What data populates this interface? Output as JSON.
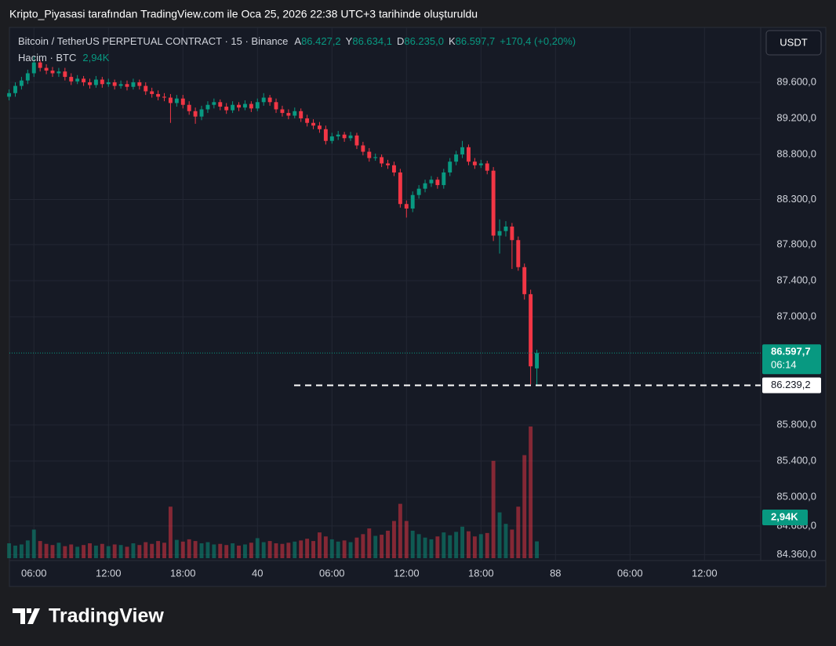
{
  "caption": "Kripto_Piyasasi tarafından TradingView.com ile Oca 25, 2026 22:38 UTC+3 tarihinde oluşturuldu",
  "logo": "TradingView",
  "chart_data": {
    "type": "candlestick",
    "title": "Bitcoin / TetherUS PERPETUAL CONTRACT · 15 · Binance",
    "ohlc_legend": [
      {
        "key": "A",
        "label": "86.427,2"
      },
      {
        "key": "Y",
        "label": "86.634,1"
      },
      {
        "key": "D",
        "label": "86.235,0"
      },
      {
        "key": "K",
        "label": "86.597,7"
      }
    ],
    "change_label": "+170,4 (+0,20%)",
    "volume_title": "Hacim · BTC",
    "volume_label": "2,94K",
    "currency": "USDT",
    "up_color": "#089981",
    "down_color": "#f23645",
    "open": [
      89440,
      89480,
      89560,
      89620,
      89700,
      89820,
      89760,
      89730,
      89700,
      89720,
      89660,
      89610,
      89640,
      89600,
      89570,
      89630,
      89580,
      89600,
      89560,
      89580,
      89550,
      89600,
      89560,
      89500,
      89470,
      89440,
      89430,
      89370,
      89420,
      89350,
      89280,
      89220,
      89300,
      89350,
      89380,
      89330,
      89290,
      89350,
      89320,
      89360,
      89310,
      89380,
      89430,
      89380,
      89300,
      89260,
      89230,
      89280,
      89200,
      89150,
      89120,
      89080,
      88950,
      89000,
      89020,
      88980,
      89010,
      88900,
      88830,
      88760,
      88770,
      88700,
      88680,
      88600,
      88250,
      88200,
      88350,
      88420,
      88480,
      88520,
      88460,
      88600,
      88720,
      88800,
      88880,
      88720,
      88680,
      88700,
      88620,
      87900,
      87950,
      88000,
      87850,
      87550,
      87250,
      86427.2
    ],
    "high": [
      89520,
      89600,
      89660,
      89740,
      89890,
      89850,
      89800,
      89770,
      89760,
      89760,
      89700,
      89680,
      89670,
      89640,
      89670,
      89660,
      89640,
      89630,
      89620,
      89620,
      89640,
      89630,
      89600,
      89540,
      89510,
      89480,
      89470,
      89460,
      89460,
      89390,
      89320,
      89340,
      89390,
      89420,
      89410,
      89370,
      89390,
      89380,
      89400,
      89390,
      89420,
      89480,
      89460,
      89420,
      89340,
      89300,
      89320,
      89310,
      89240,
      89190,
      89160,
      89120,
      89040,
      89060,
      89050,
      89050,
      89040,
      88940,
      88870,
      88810,
      88800,
      88740,
      88720,
      88640,
      88290,
      88390,
      88460,
      88520,
      88560,
      88550,
      88640,
      88760,
      88840,
      88950,
      88910,
      88760,
      88740,
      88730,
      88660,
      88080,
      88060,
      88040,
      87890,
      87590,
      87300,
      86634.1
    ],
    "low": [
      89400,
      89440,
      89520,
      89580,
      89660,
      89720,
      89690,
      89660,
      89660,
      89620,
      89570,
      89580,
      89560,
      89530,
      89540,
      89540,
      89550,
      89520,
      89530,
      89510,
      89520,
      89520,
      89460,
      89430,
      89400,
      89390,
      89150,
      89330,
      89310,
      89240,
      89140,
      89180,
      89260,
      89310,
      89290,
      89250,
      89260,
      89280,
      89290,
      89270,
      89280,
      89340,
      89340,
      89260,
      89220,
      89190,
      89200,
      89160,
      89110,
      89080,
      89040,
      88910,
      88920,
      88960,
      88940,
      88950,
      88860,
      88790,
      88720,
      88730,
      88660,
      88640,
      88560,
      88210,
      88100,
      88160,
      88310,
      88380,
      88440,
      88420,
      88420,
      88560,
      88680,
      88760,
      88680,
      88640,
      88650,
      88580,
      87840,
      87700,
      87890,
      87530,
      87510,
      87190,
      86250,
      86235
    ],
    "close": [
      89480,
      89560,
      89620,
      89700,
      89820,
      89760,
      89730,
      89700,
      89720,
      89660,
      89610,
      89640,
      89600,
      89570,
      89630,
      89580,
      89600,
      89560,
      89580,
      89550,
      89600,
      89560,
      89500,
      89470,
      89440,
      89430,
      89370,
      89420,
      89350,
      89280,
      89220,
      89300,
      89350,
      89380,
      89330,
      89290,
      89350,
      89320,
      89360,
      89310,
      89380,
      89430,
      89380,
      89300,
      89260,
      89230,
      89280,
      89200,
      89150,
      89120,
      89080,
      88950,
      89000,
      89020,
      88980,
      89010,
      88900,
      88830,
      88760,
      88770,
      88700,
      88680,
      88600,
      88250,
      88200,
      88350,
      88420,
      88480,
      88520,
      88460,
      88600,
      88720,
      88800,
      88880,
      88720,
      88680,
      88700,
      88620,
      87900,
      87950,
      88000,
      87850,
      87550,
      87250,
      86450,
      86597.7
    ],
    "volume": [
      2600,
      2200,
      2400,
      3100,
      5000,
      3000,
      2500,
      2300,
      2700,
      2100,
      2400,
      2000,
      2300,
      2600,
      2200,
      2500,
      2100,
      2400,
      2300,
      2000,
      2600,
      2300,
      2800,
      2500,
      3000,
      2700,
      9000,
      3200,
      2900,
      3300,
      3000,
      2600,
      2800,
      2400,
      2500,
      2300,
      2600,
      2200,
      2400,
      2700,
      3500,
      2800,
      3000,
      2600,
      2500,
      2700,
      2900,
      3100,
      3400,
      3000,
      4500,
      3800,
      3300,
      2900,
      3100,
      2800,
      3600,
      4200,
      5200,
      3900,
      4100,
      4800,
      6500,
      9500,
      6500,
      4800,
      4200,
      3600,
      3300,
      3800,
      4500,
      4000,
      4600,
      5500,
      4700,
      3800,
      4200,
      4400,
      17000,
      8000,
      6000,
      5000,
      9000,
      18000,
      23000,
      2940
    ],
    "ylim": [
      84322,
      90165
    ],
    "yticks": [
      {
        "value": 89600,
        "label": "89.600,0"
      },
      {
        "value": 89200,
        "label": "89.200,0"
      },
      {
        "value": 88800,
        "label": "88.800,0"
      },
      {
        "value": 88300,
        "label": "88.300,0"
      },
      {
        "value": 87800,
        "label": "87.800,0"
      },
      {
        "value": 87400,
        "label": "87.400,0"
      },
      {
        "value": 87000,
        "label": "87.000,0"
      },
      {
        "value": 85800,
        "label": "85.800,0"
      },
      {
        "value": 85400,
        "label": "85.400,0"
      },
      {
        "value": 85000,
        "label": "85.000,0"
      },
      {
        "value": 84680,
        "label": "84.680,0"
      },
      {
        "value": 84360,
        "label": "84.360,0"
      }
    ],
    "xlim": [
      -0.2,
      120.8
    ],
    "xticks": [
      {
        "value": 4,
        "label": "06:00"
      },
      {
        "value": 16,
        "label": "12:00"
      },
      {
        "value": 28,
        "label": "18:00"
      },
      40,
      {
        "value": 52,
        "label": "06:00"
      },
      {
        "value": 64,
        "label": "12:00"
      },
      {
        "value": 76,
        "label": "18:00"
      },
      88,
      {
        "value": 100,
        "label": "06:00"
      },
      {
        "value": 112,
        "label": "12:00"
      }
    ],
    "volume_lim": [
      0,
      92000
    ],
    "last_price": {
      "value": 86597.7,
      "label": "86.597,7",
      "countdown": "06:14"
    },
    "level_line": {
      "value": 86239.2,
      "label": "86.239,2"
    },
    "grid": true
  }
}
